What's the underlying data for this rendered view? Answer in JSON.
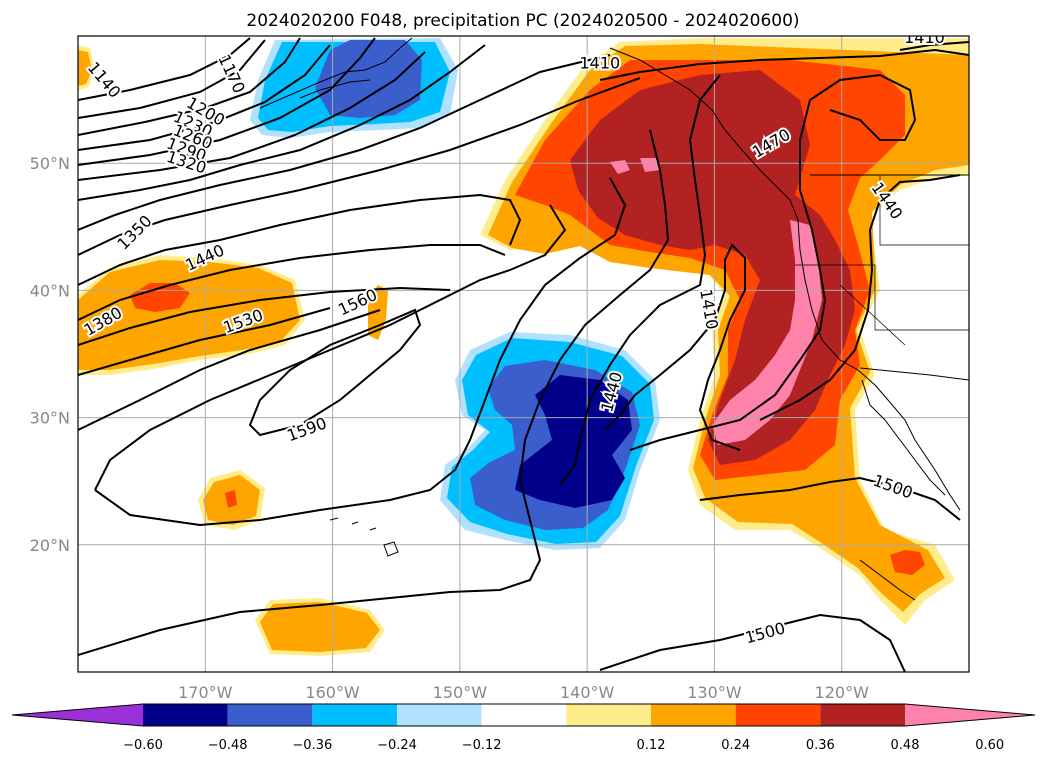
{
  "title": "2024020200 F048, precipitation PC (2024020500 - 2024020600)",
  "map": {
    "lon_range": [
      -180,
      -110
    ],
    "lat_range": [
      10,
      60
    ],
    "lon_ticks": [
      {
        "value": -170,
        "label": "170°W"
      },
      {
        "value": -160,
        "label": "160°W"
      },
      {
        "value": -150,
        "label": "150°W"
      },
      {
        "value": -140,
        "label": "140°W"
      },
      {
        "value": -130,
        "label": "130°W"
      },
      {
        "value": -120,
        "label": "120°W"
      }
    ],
    "lat_ticks": [
      {
        "value": 20,
        "label": "20°N"
      },
      {
        "value": 30,
        "label": "30°N"
      },
      {
        "value": 40,
        "label": "40°N"
      },
      {
        "value": 50,
        "label": "50°N"
      }
    ],
    "grid": true,
    "contour_labels": [
      {
        "text": "1410",
        "lon": -139,
        "lat": 57.8,
        "angle": 0
      },
      {
        "text": "1410",
        "lon": -113.5,
        "lat": 59.8,
        "angle": 0
      },
      {
        "text": "1140",
        "lon": -178,
        "lat": 56.5,
        "angle": 50
      },
      {
        "text": "1170",
        "lon": -168,
        "lat": 57,
        "angle": 65
      },
      {
        "text": "1200",
        "lon": -170,
        "lat": 54,
        "angle": 30
      },
      {
        "text": "1230",
        "lon": -171,
        "lat": 53,
        "angle": 25
      },
      {
        "text": "1260",
        "lon": -171,
        "lat": 52,
        "angle": 22
      },
      {
        "text": "1290",
        "lon": -171.5,
        "lat": 51,
        "angle": 20
      },
      {
        "text": "1320",
        "lon": -171.5,
        "lat": 50,
        "angle": 18
      },
      {
        "text": "1350",
        "lon": -175.5,
        "lat": 44.5,
        "angle": -45
      },
      {
        "text": "1380",
        "lon": -178,
        "lat": 37.5,
        "angle": -30
      },
      {
        "text": "1440",
        "lon": -170,
        "lat": 42.5,
        "angle": -25
      },
      {
        "text": "1530",
        "lon": -167,
        "lat": 37.5,
        "angle": -20
      },
      {
        "text": "1560",
        "lon": -158,
        "lat": 39,
        "angle": -25
      },
      {
        "text": "1590",
        "lon": -162,
        "lat": 29,
        "angle": -20
      },
      {
        "text": "1470",
        "lon": -125.5,
        "lat": 51.5,
        "angle": -30
      },
      {
        "text": "1440",
        "lon": -116.5,
        "lat": 47,
        "angle": 55
      },
      {
        "text": "1410",
        "lon": -130.5,
        "lat": 38.5,
        "angle": 80
      },
      {
        "text": "1440",
        "lon": -138,
        "lat": 32,
        "angle": -75
      },
      {
        "text": "1500",
        "lon": -116,
        "lat": 24.5,
        "angle": 20
      },
      {
        "text": "1500",
        "lon": -126,
        "lat": 13,
        "angle": -15
      }
    ]
  },
  "colorbar": {
    "ticks": [
      "−0.60",
      "−0.48",
      "−0.36",
      "−0.24",
      "−0.12",
      "0.12",
      "0.24",
      "0.36",
      "0.48",
      "0.60"
    ],
    "bins": [
      {
        "color": "#9b30d9"
      },
      {
        "color": "#00008b"
      },
      {
        "color": "#3a5fcd"
      },
      {
        "color": "#00bfff"
      },
      {
        "color": "#b0e2ff"
      },
      {
        "color": "#ffffff"
      },
      {
        "color": "#ffec8b"
      },
      {
        "color": "#ffa500"
      },
      {
        "color": "#ff4500"
      },
      {
        "color": "#b22222"
      },
      {
        "color": "#ff82ab"
      }
    ]
  },
  "colors": {
    "deep_blue": "#00008b",
    "mid_blue": "#3a5fcd",
    "sky_blue": "#00bfff",
    "light_blue": "#b0e2ff",
    "light_yellow": "#ffec8b",
    "orange": "#ffa500",
    "red_orange": "#ff4500",
    "dark_red": "#b22222",
    "pink": "#ff82ab",
    "purple": "#9b30d9"
  }
}
